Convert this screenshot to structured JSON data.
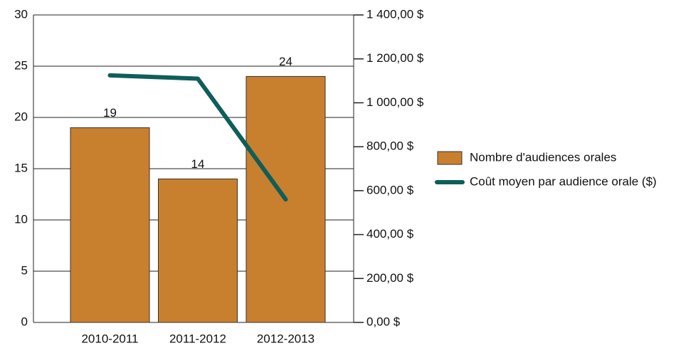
{
  "chart_data": {
    "type": "bar",
    "categories": [
      "2010-2011",
      "2011-2012",
      "2012-2013"
    ],
    "series": [
      {
        "name": "Nombre d'audiences orales",
        "type": "bar",
        "color": "#c8802e",
        "values": [
          19,
          14,
          24
        ],
        "data_labels": true
      },
      {
        "name": "Coût moyen par audience orale ($)",
        "type": "line",
        "color": "#0e5e5a",
        "axis": "y2",
        "values": [
          1125,
          1110,
          560
        ]
      }
    ],
    "ylim": [
      0,
      30
    ],
    "yticks": [
      0,
      5,
      10,
      15,
      20,
      25,
      30
    ],
    "y2lim": [
      0,
      1400
    ],
    "y2ticks": [
      {
        "value": 0,
        "label": "0,00 $"
      },
      {
        "value": 200,
        "label": "200,00 $"
      },
      {
        "value": 400,
        "label": "400,00 $"
      },
      {
        "value": 600,
        "label": "600,00 $"
      },
      {
        "value": 800,
        "label": "800,00 $"
      },
      {
        "value": 1000,
        "label": "1 000,00 $"
      },
      {
        "value": 1200,
        "label": "1 200,00 $"
      },
      {
        "value": 1400,
        "label": "1 400,00 $"
      }
    ],
    "grid": true,
    "legend": "right"
  }
}
